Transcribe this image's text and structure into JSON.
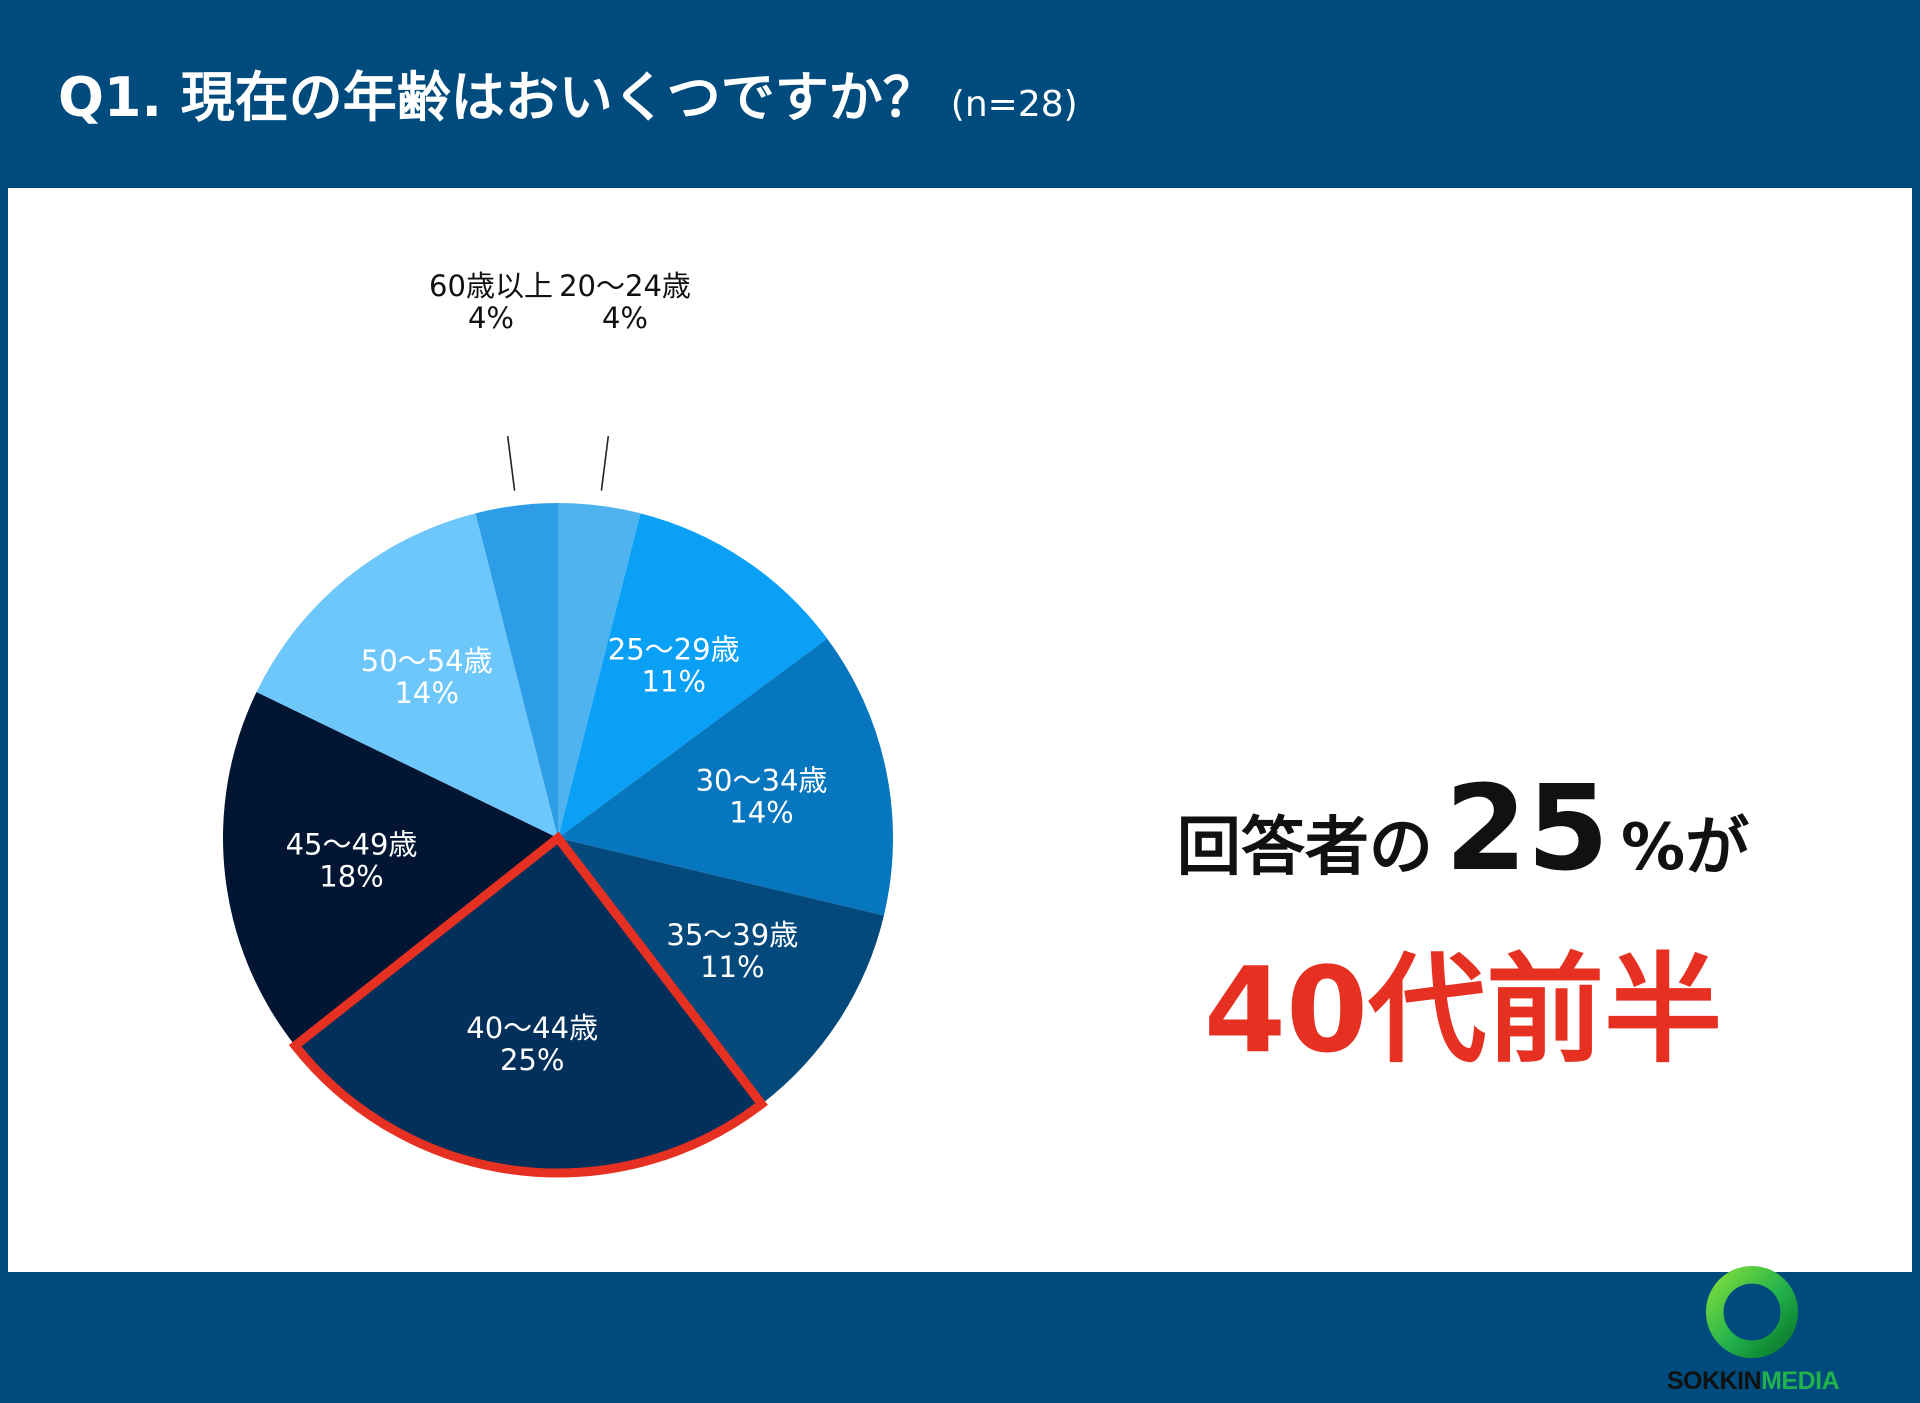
{
  "header": {
    "title": "Q1. 現在の年齢はおいくつですか？",
    "sample": "(n=28)"
  },
  "chart_data": {
    "type": "pie",
    "title": "Q1. 現在の年齢はおいくつですか？",
    "slices": [
      {
        "label": "20〜24歳",
        "value": 4,
        "pct_label": "4%",
        "color": "#4fb3f0"
      },
      {
        "label": "25〜29歳",
        "value": 11,
        "pct_label": "11%",
        "color": "#0aa0f5"
      },
      {
        "label": "30〜34歳",
        "value": 14,
        "pct_label": "14%",
        "color": "#0676bf"
      },
      {
        "label": "35〜39歳",
        "value": 11,
        "pct_label": "11%",
        "color": "#03497c"
      },
      {
        "label": "40〜44歳",
        "value": 25,
        "pct_label": "25%",
        "color": "#02305b"
      },
      {
        "label": "45〜49歳",
        "value": 18,
        "pct_label": "18%",
        "color": "#021634"
      },
      {
        "label": "50〜54歳",
        "value": 14,
        "pct_label": "14%",
        "color": "#6ec7fb"
      },
      {
        "label": "60歳以上",
        "value": 4,
        "pct_label": "4%",
        "color": "#2c9de6"
      }
    ],
    "highlight": "40〜44歳",
    "highlight_color": "#e63122",
    "sample_size": 28
  },
  "headline": {
    "line1_prefix": "回答者の",
    "line1_value": "25",
    "line1_suffix": "%が",
    "line2": "40代前半"
  },
  "logo": {
    "part1": "SOKKIN",
    "part2": "MEDIA"
  }
}
